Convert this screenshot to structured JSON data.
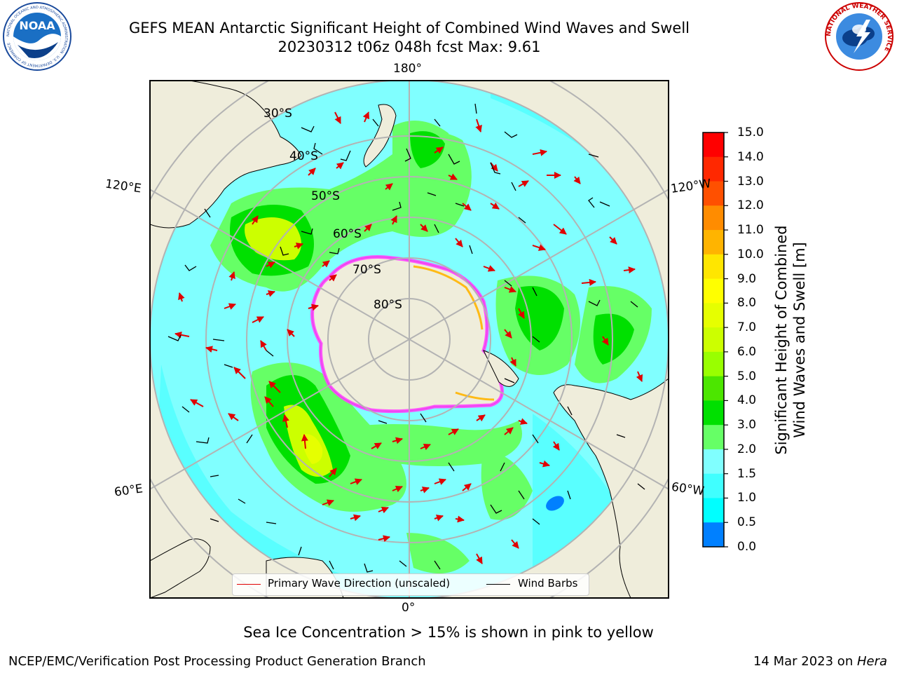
{
  "header": {
    "title_line1": "GEFS MEAN Antarctic Significant Height of Combined Wind Waves and Swell",
    "title_line2": "20230312 t06z 048h fcst   Max: 9.61"
  },
  "logos": {
    "noaa_text": "NOAA",
    "noaa_ring_text": "NATIONAL OCEANIC AND ATMOSPHERIC ADMINISTRATION · U.S. DEPARTMENT OF COMMERCE",
    "nws_ring_text": "NATIONAL WEATHER SERVICE"
  },
  "map": {
    "projection": "south-polar-stereographic",
    "latitude_labels": [
      "30°S",
      "40°S",
      "50°S",
      "60°S",
      "70°S",
      "80°S"
    ],
    "longitude_labels": {
      "top": "180°",
      "bottom": "0°",
      "upper_left": "120°E",
      "upper_right": "120°W",
      "lower_left": "60°E",
      "lower_right": "60°W"
    },
    "colors": {
      "land": "#efeddb",
      "ocean_low": "#00ffff",
      "ocean_mid": "#80ffff",
      "wave_3_4": "#66ff66",
      "wave_4_5": "#00e000",
      "wave_high": "#ccff00",
      "sea_ice": "#ff44ff",
      "wave_arrow": "#e00000",
      "wind_barb": "#000000",
      "grid": "#b3b3b3"
    }
  },
  "legend": {
    "primary_wave_label": "Primary Wave Direction (unscaled)",
    "wind_barbs_label": "Wind Barbs"
  },
  "colorbar": {
    "label_line1": "Significant Height of Combined",
    "label_line2": "Wind Waves and Swell [m]",
    "ticks": [
      "15.0",
      "14.0",
      "13.0",
      "12.0",
      "11.0",
      "10.0",
      "9.0",
      "8.0",
      "7.0",
      "6.0",
      "5.0",
      "4.0",
      "3.0",
      "2.0",
      "1.5",
      "1.0",
      "0.5",
      "0.0"
    ],
    "colors": [
      "#ff0000",
      "#ff2800",
      "#ff5000",
      "#ff8c00",
      "#ffb400",
      "#ffe600",
      "#ffff00",
      "#e6ff00",
      "#ccff00",
      "#99ff00",
      "#4ce600",
      "#00e000",
      "#66ff66",
      "#80ffff",
      "#40ffff",
      "#00ffff",
      "#0080ff",
      "#0000ff"
    ]
  },
  "caption": "Sea Ice Concentration > 15% is shown in pink to yellow",
  "footer": {
    "left": "NCEP/EMC/Verification Post Processing Product Generation Branch",
    "date": "14 Mar 2023 on ",
    "machine": "Hera"
  }
}
